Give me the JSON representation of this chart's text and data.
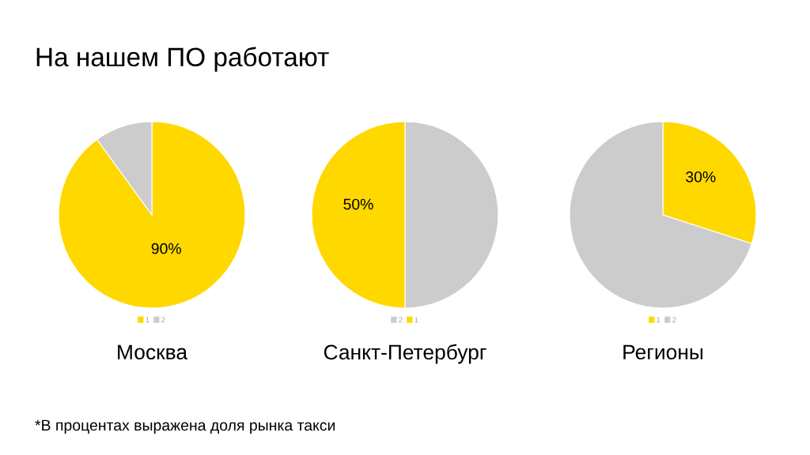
{
  "chart_data": [
    {
      "type": "pie",
      "title": "На нашем ПО работают",
      "xlabel": "Москва",
      "categories": [
        "1",
        "2"
      ],
      "values": [
        90,
        10
      ],
      "colors": [
        "#ffd800",
        "#cccccc"
      ],
      "value_labels": [
        "90%",
        null
      ],
      "legend": "bottom",
      "annotations": [
        "*В процентах выражена доля рынка такси"
      ]
    },
    {
      "type": "pie",
      "xlabel": "Санкт-Петербург",
      "categories": [
        "2",
        "1"
      ],
      "values": [
        50,
        50
      ],
      "colors": [
        "#cccccc",
        "#ffd800"
      ],
      "value_labels": [
        null,
        "50%"
      ],
      "legend": "bottom"
    },
    {
      "type": "pie",
      "xlabel": "Регионы",
      "categories": [
        "1",
        "2"
      ],
      "values": [
        30,
        70
      ],
      "colors": [
        "#ffd800",
        "#cccccc"
      ],
      "value_labels": [
        "30%",
        null
      ],
      "legend": "bottom"
    }
  ]
}
